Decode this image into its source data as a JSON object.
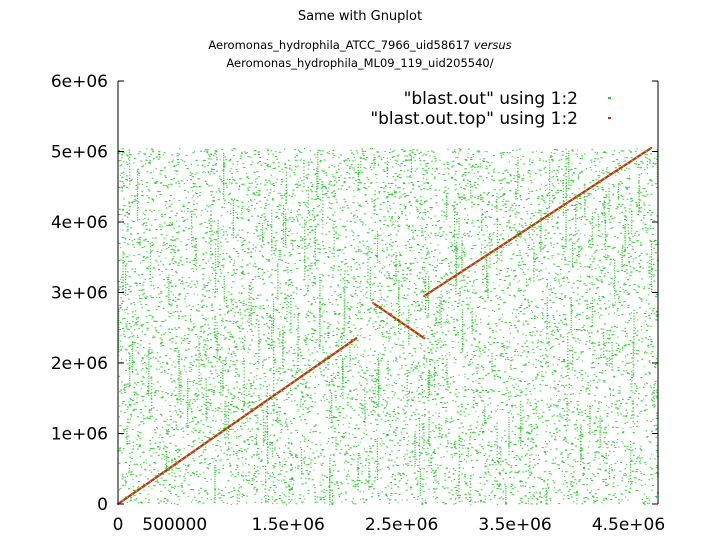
{
  "page": {
    "title": "Same with Gnuplot",
    "subtitle_line1_name": "Aeromonas_hydrophila_ATCC_7966_uid58617",
    "subtitle_line1_connector": "versus",
    "subtitle_line2": "Aeromonas_hydrophila_ML09_119_uid205540/"
  },
  "chart_data": {
    "type": "scatter",
    "title": "",
    "xlabel": "",
    "ylabel": "",
    "xlim": [
      0,
      4760000
    ],
    "ylim": [
      0,
      6000000
    ],
    "grid": false,
    "legend_position": "top-right",
    "x_tick_labels": [
      {
        "value": 0,
        "label": "0"
      },
      {
        "value": 500000,
        "label": "500000"
      },
      {
        "value": 1500000,
        "label": "1.5e+06"
      },
      {
        "value": 2500000,
        "label": "2.5e+06"
      },
      {
        "value": 3500000,
        "label": "3.5e+06"
      },
      {
        "value": 4500000,
        "label": "4.5e+06"
      }
    ],
    "y_tick_labels": [
      {
        "value": 0,
        "label": "0"
      },
      {
        "value": 1000000,
        "label": "1e+06"
      },
      {
        "value": 2000000,
        "label": "2e+06"
      },
      {
        "value": 3000000,
        "label": "3e+06"
      },
      {
        "value": 4000000,
        "label": "4e+06"
      },
      {
        "value": 5000000,
        "label": "5e+06"
      },
      {
        "value": 6000000,
        "label": "6e+06"
      }
    ],
    "series": [
      {
        "name": "\"blast.out\" using 1:2",
        "color": "#33cc33",
        "description": "dense background of short alignments across the whole range",
        "x_range": [
          0,
          4750000
        ],
        "y_range": [
          0,
          5050000
        ]
      },
      {
        "name": "\"blast.out.top\" using 1:2",
        "color": "#b03a10",
        "segments": [
          {
            "x": [
              0,
              2100000
            ],
            "y": [
              0,
              2350000
            ]
          },
          {
            "x": [
              2250000,
              2700000
            ],
            "y": [
              2850000,
              2350000
            ]
          },
          {
            "x": [
              2700000,
              4700000
            ],
            "y": [
              2950000,
              5050000
            ]
          }
        ]
      }
    ]
  }
}
